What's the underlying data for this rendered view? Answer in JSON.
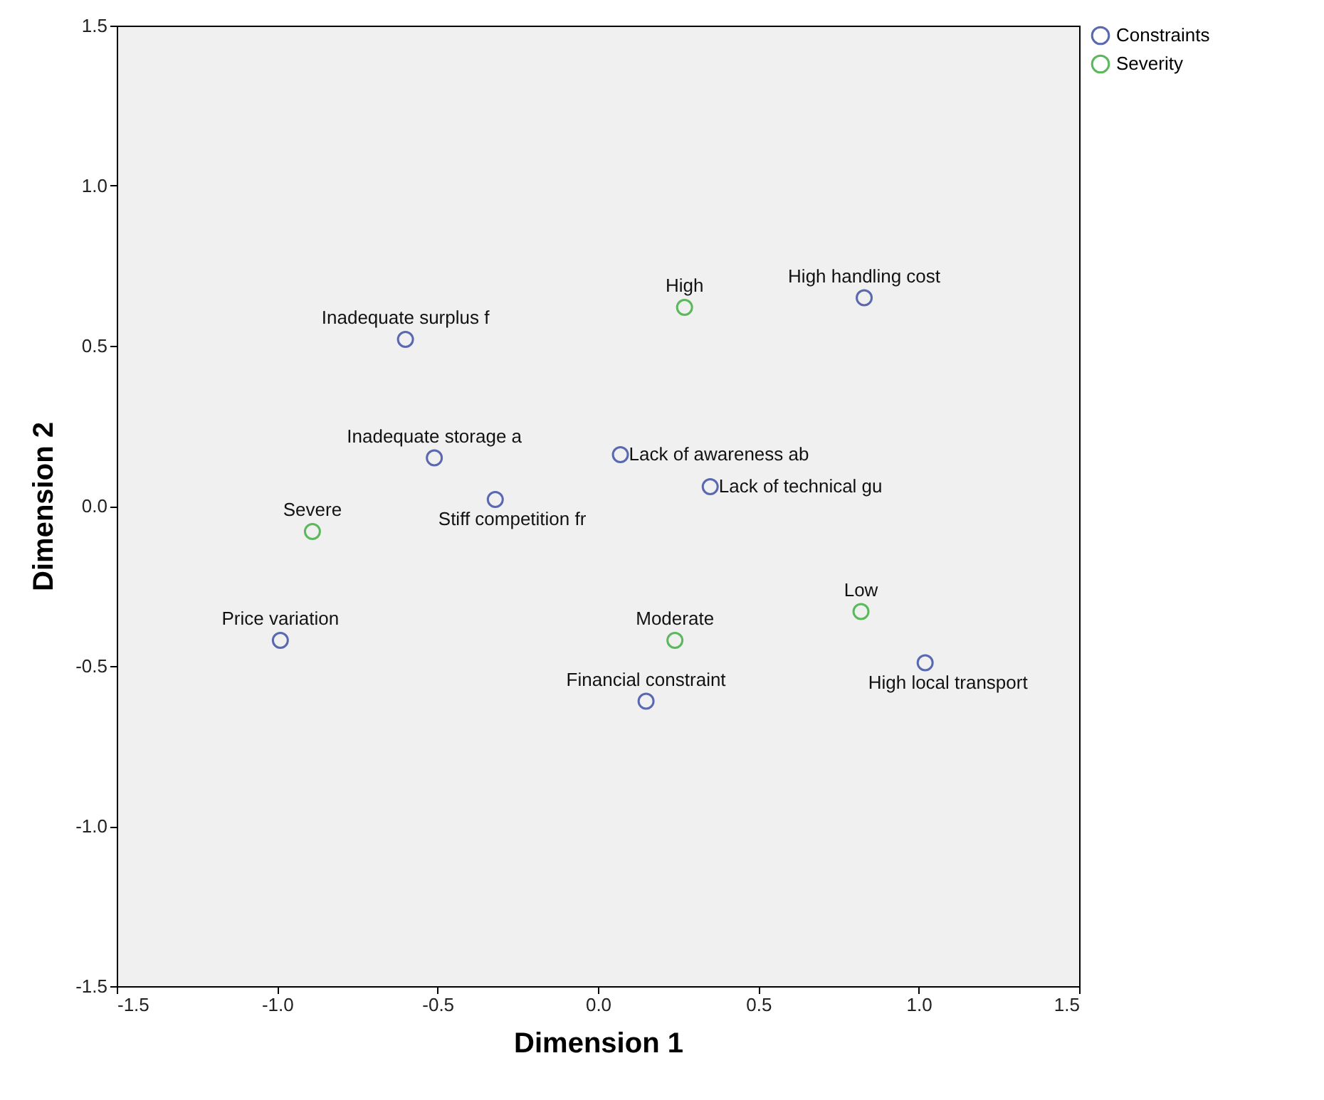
{
  "chart_data": {
    "type": "scatter",
    "xlabel": "Dimension 1",
    "ylabel": "Dimension 2",
    "xlim": [
      -1.5,
      1.5
    ],
    "ylim": [
      -1.5,
      1.5
    ],
    "xticks": [
      {
        "value": -1.5,
        "label": "-1.5"
      },
      {
        "value": -1,
        "label": "-1.0"
      },
      {
        "value": -0.5,
        "label": "-0.5"
      },
      {
        "value": 0,
        "label": "0.0"
      },
      {
        "value": 0.5,
        "label": "0.5"
      },
      {
        "value": 1,
        "label": "1.0"
      },
      {
        "value": 1.5,
        "label": "1.5"
      }
    ],
    "yticks": [
      {
        "value": -1.5,
        "label": "-1.5"
      },
      {
        "value": -1,
        "label": "-1.0"
      },
      {
        "value": -0.5,
        "label": "-0.5"
      },
      {
        "value": 0,
        "label": "0.0"
      },
      {
        "value": 0.5,
        "label": "0.5"
      },
      {
        "value": 1,
        "label": "1.0"
      },
      {
        "value": 1.5,
        "label": "1.5"
      }
    ],
    "grid": false,
    "legend": "top right",
    "marker": "circle",
    "series": [
      {
        "name": "Constraints",
        "color": "#5a68b0",
        "x": [
          -0.6,
          0.83,
          -0.51,
          0.07,
          0.35,
          -0.32,
          -0.99,
          0.15,
          1.02
        ],
        "values": [
          0.52,
          0.65,
          0.15,
          0.16,
          0.06,
          0.02,
          -0.42,
          -0.61,
          -0.49
        ]
      },
      {
        "name": "Severity",
        "color": "#5cb85c",
        "x": [
          0.27,
          -0.89,
          0.24,
          0.82
        ],
        "values": [
          0.62,
          -0.08,
          -0.42,
          -0.33
        ]
      }
    ],
    "annotations": [
      {
        "text": "Inadequate surplus f",
        "x": -0.6,
        "y": 0.52
      },
      {
        "text": "High handling cost",
        "x": 0.83,
        "y": 0.65
      },
      {
        "text": "Inadequate storage a",
        "x": -0.51,
        "y": 0.15
      },
      {
        "text": "Lack of awareness ab",
        "x": 0.07,
        "y": 0.16
      },
      {
        "text": "Lack of technical gu",
        "x": 0.35,
        "y": 0.06
      },
      {
        "text": "Stiff competition fr",
        "x": -0.32,
        "y": 0.02
      },
      {
        "text": "Price variation",
        "x": -0.99,
        "y": -0.42
      },
      {
        "text": "Financial constraint",
        "x": 0.15,
        "y": -0.61
      },
      {
        "text": "High local transport",
        "x": 1.02,
        "y": -0.49
      },
      {
        "text": "High",
        "x": 0.27,
        "y": 0.62
      },
      {
        "text": "Severe",
        "x": -0.89,
        "y": -0.08
      },
      {
        "text": "Moderate",
        "x": 0.24,
        "y": -0.42
      },
      {
        "text": "Low",
        "x": 0.82,
        "y": -0.33
      }
    ]
  }
}
